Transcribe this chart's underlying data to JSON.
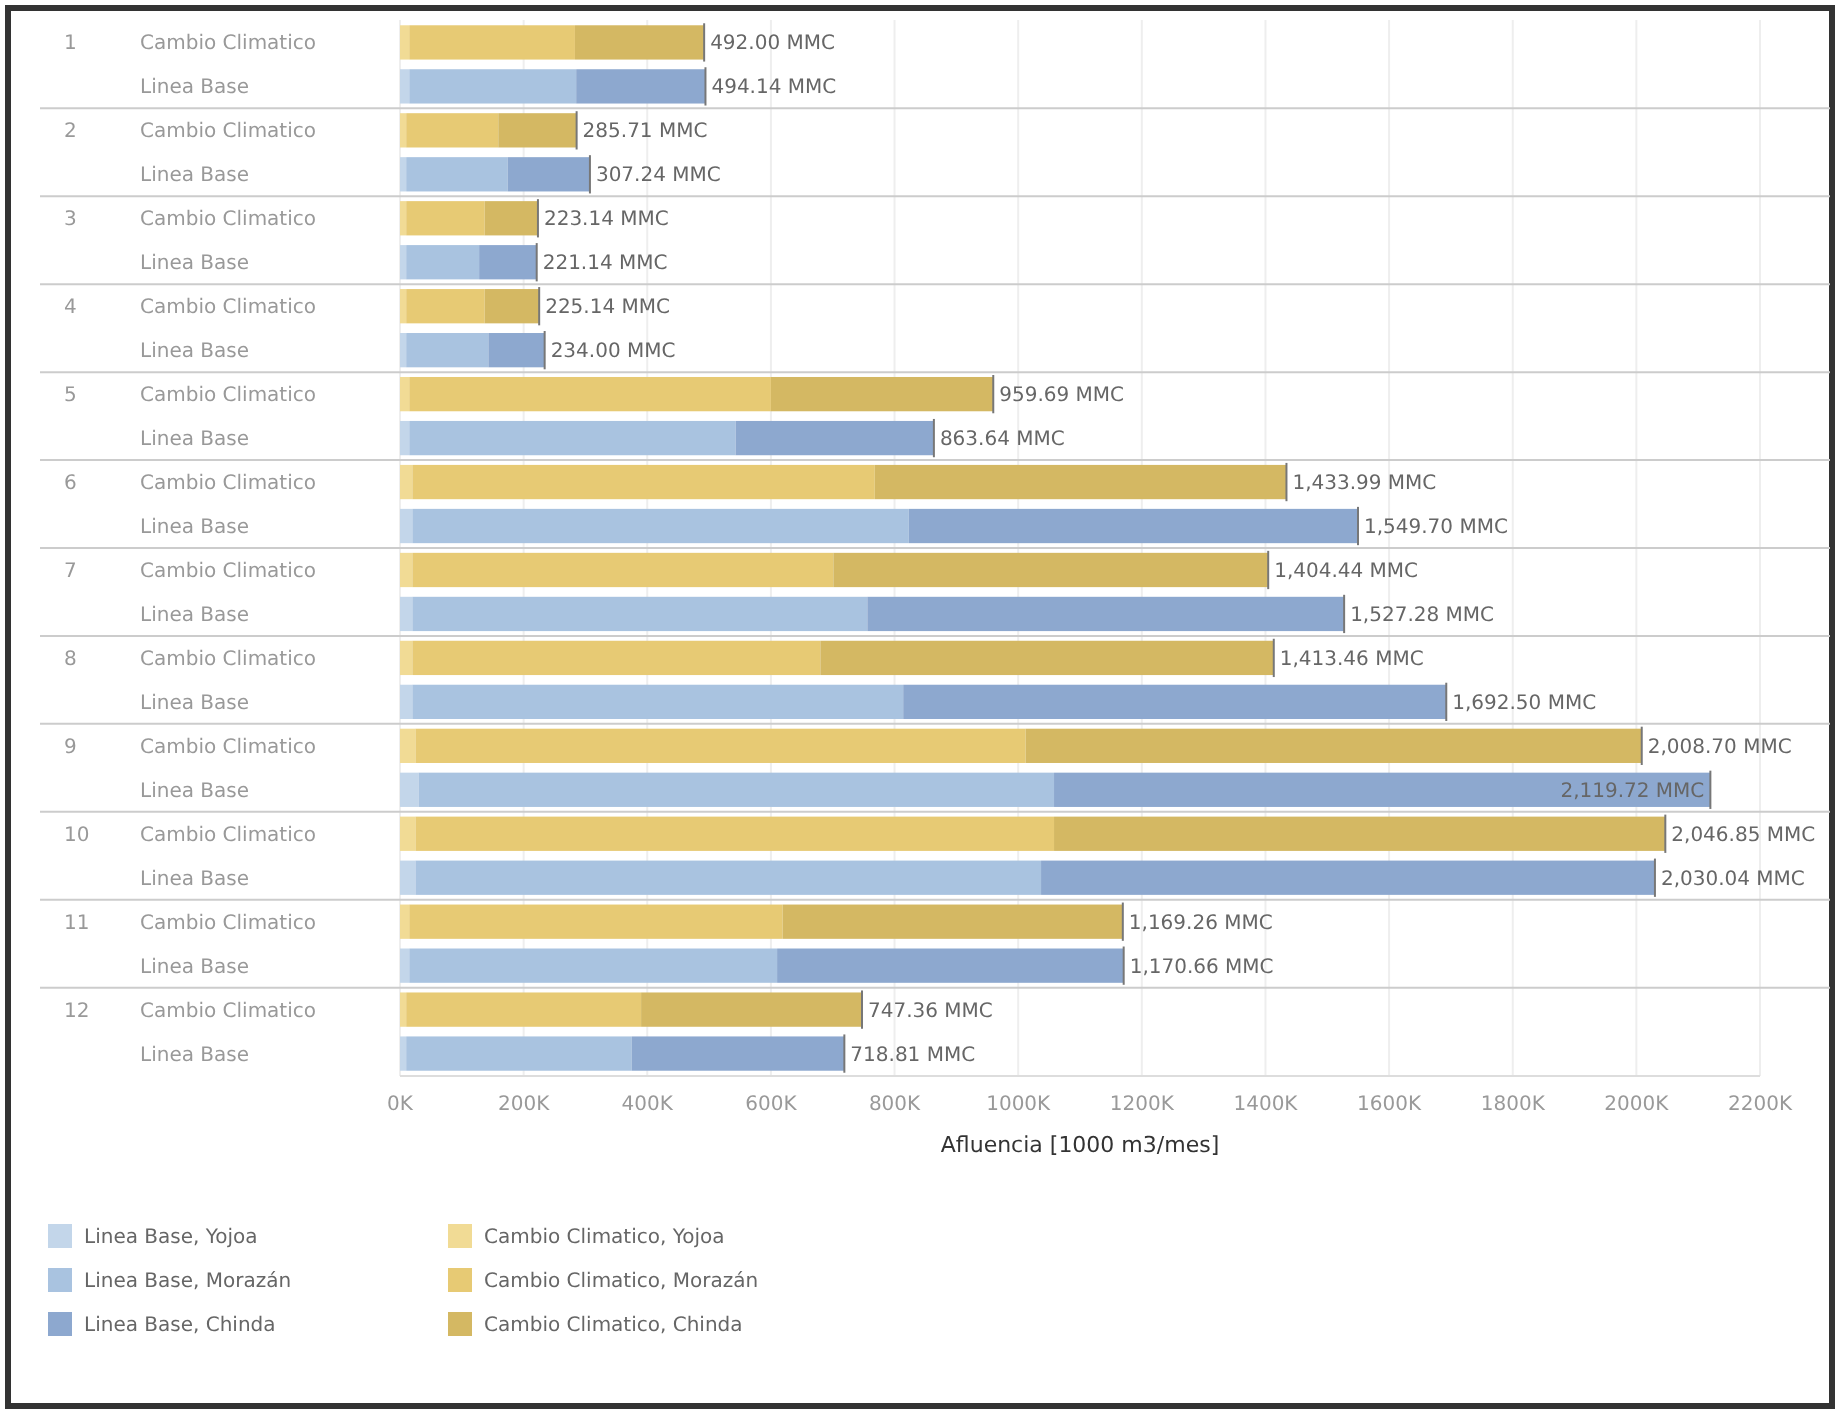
{
  "chart_data": {
    "type": "bar",
    "orientation": "horizontal",
    "stacked": true,
    "xlabel": "Afluencia [1000 m3/mes]",
    "categories": [
      "Cambio Climatico",
      "Linea Base",
      "Cambio Climatico",
      "Linea Base",
      "Cambio Climatico",
      "Linea Base",
      "Cambio Climatico",
      "Linea Base",
      "Cambio Climatico",
      "Linea Base",
      "Cambio Climatico",
      "Linea Base",
      "Cambio Climatico",
      "Linea Base",
      "Cambio Climatico",
      "Linea Base",
      "Cambio Climatico",
      "Linea Base",
      "Cambio Climatico",
      "Linea Base",
      "Cambio Climatico",
      "Linea Base",
      "Cambio Climatico",
      "Linea Base"
    ],
    "annotations": [
      "1",
      "2",
      "3",
      "4",
      "5",
      "6",
      "7",
      "8",
      "9",
      "10",
      "11",
      "12"
    ],
    "series": [
      {
        "name": "Linea Base, Yojoa",
        "color": "#c3d6ea",
        "values": [
          null,
          15,
          null,
          10,
          null,
          10,
          null,
          10,
          null,
          15,
          null,
          20,
          null,
          20,
          null,
          20,
          null,
          30,
          null,
          25,
          null,
          15,
          null,
          10
        ]
      },
      {
        "name": "Linea Base, Morazán",
        "color": "#a9c3e0",
        "values": [
          null,
          270,
          null,
          164,
          null,
          118,
          null,
          133,
          null,
          528,
          null,
          803,
          null,
          736,
          null,
          794,
          null,
          1028,
          null,
          1012,
          null,
          595,
          null,
          365
        ]
      },
      {
        "name": "Linea Base, Chinda",
        "color": "#8da8cf",
        "values": [
          null,
          209.14,
          null,
          133.24,
          null,
          93.14,
          null,
          91,
          null,
          320.64,
          null,
          726.7,
          null,
          771.28,
          null,
          878.5,
          null,
          1061.72,
          null,
          993.04,
          null,
          560.66,
          null,
          343.81
        ]
      },
      {
        "name": "Cambio Climatico, Yojoa",
        "color": "#f1db95",
        "values": [
          15,
          null,
          10,
          null,
          10,
          null,
          10,
          null,
          15,
          null,
          20,
          null,
          20,
          null,
          20,
          null,
          25,
          null,
          25,
          null,
          15,
          null,
          10,
          null
        ]
      },
      {
        "name": "Cambio Climatico, Morazán",
        "color": "#e7ca74",
        "values": [
          268,
          null,
          149,
          null,
          127,
          null,
          127,
          null,
          585,
          null,
          748,
          null,
          681,
          null,
          660,
          null,
          987,
          null,
          1033,
          null,
          604,
          null,
          380,
          null
        ]
      },
      {
        "name": "Cambio Climatico, Chinda",
        "color": "#d4b863",
        "values": [
          209,
          null,
          126.71,
          null,
          86.14,
          null,
          88.14,
          null,
          359.69,
          null,
          665.99,
          null,
          703.44,
          null,
          733.46,
          null,
          996.7,
          null,
          988.85,
          null,
          550.26,
          null,
          357.36,
          null
        ]
      }
    ],
    "totals": [
      "492.00 MMC",
      "494.14 MMC",
      "285.71 MMC",
      "307.24 MMC",
      "223.14 MMC",
      "221.14 MMC",
      "225.14 MMC",
      "234.00 MMC",
      "959.69 MMC",
      "863.64 MMC",
      "1,433.99 MMC",
      "1,549.70 MMC",
      "1,404.44 MMC",
      "1,527.28 MMC",
      "1,413.46 MMC",
      "1,692.50 MMC",
      "2,008.70 MMC",
      "2,119.72 MMC",
      "2,046.85 MMC",
      "2,030.04 MMC",
      "1,169.26 MMC",
      "1,170.66 MMC",
      "747.36 MMC",
      "718.81 MMC"
    ],
    "xlim": [
      0,
      2200
    ],
    "xticks": [
      {
        "value": 0,
        "label": "0K"
      },
      {
        "value": 200,
        "label": "200K"
      },
      {
        "value": 400,
        "label": "400K"
      },
      {
        "value": 600,
        "label": "600K"
      },
      {
        "value": 800,
        "label": "800K"
      },
      {
        "value": 1000,
        "label": "1000K"
      },
      {
        "value": 1200,
        "label": "1200K"
      },
      {
        "value": 1400,
        "label": "1400K"
      },
      {
        "value": 1600,
        "label": "1600K"
      },
      {
        "value": 1800,
        "label": "1800K"
      },
      {
        "value": 2000,
        "label": "2000K"
      },
      {
        "value": 2200,
        "label": "2200K"
      }
    ],
    "grid": "x",
    "legend": "bottom left"
  }
}
